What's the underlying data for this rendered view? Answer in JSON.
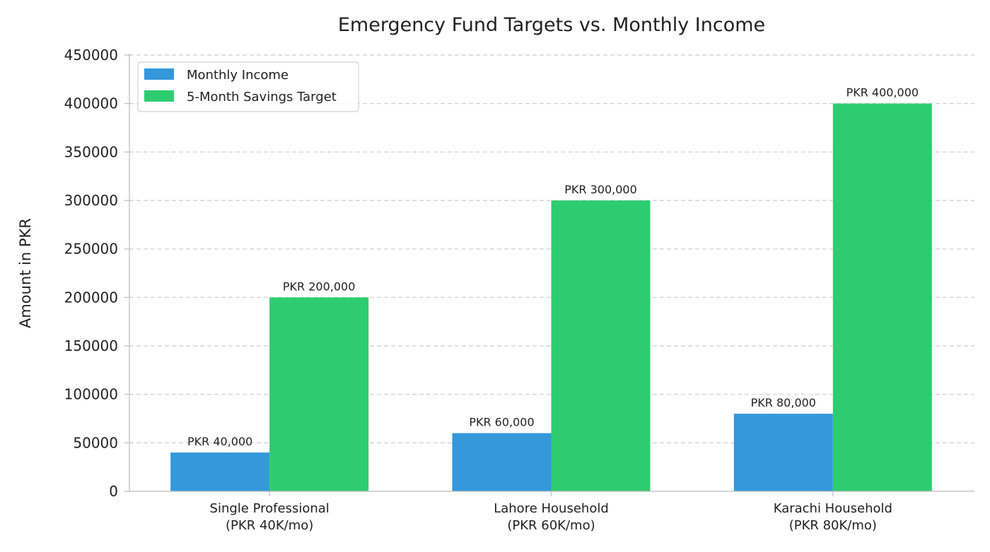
{
  "chart_data": {
    "type": "bar",
    "title": "Emergency Fund Targets vs. Monthly Income",
    "xlabel": "",
    "ylabel": "Amount in PKR",
    "ylim": [
      0,
      450000
    ],
    "yticks": [
      "0",
      "50000",
      "100000",
      "150000",
      "200000",
      "250000",
      "300000",
      "350000",
      "400000",
      "450000"
    ],
    "grid": "horizontal-dashed",
    "legend_position": "top-left",
    "categories": [
      [
        "Single Professional",
        "(PKR 40K/mo)"
      ],
      [
        "Lahore Household",
        "(PKR 60K/mo)"
      ],
      [
        "Karachi Household",
        "(PKR 80K/mo)"
      ]
    ],
    "series": [
      {
        "name": "Monthly Income",
        "color": "#3498db",
        "values": [
          40000,
          60000,
          80000
        ],
        "labels": [
          "PKR 40,000",
          "PKR 60,000",
          "PKR 80,000"
        ]
      },
      {
        "name": "5-Month Savings Target",
        "color": "#2ecc71",
        "values": [
          200000,
          300000,
          400000
        ],
        "labels": [
          "PKR 200,000",
          "PKR 300,000",
          "PKR 400,000"
        ]
      }
    ]
  }
}
